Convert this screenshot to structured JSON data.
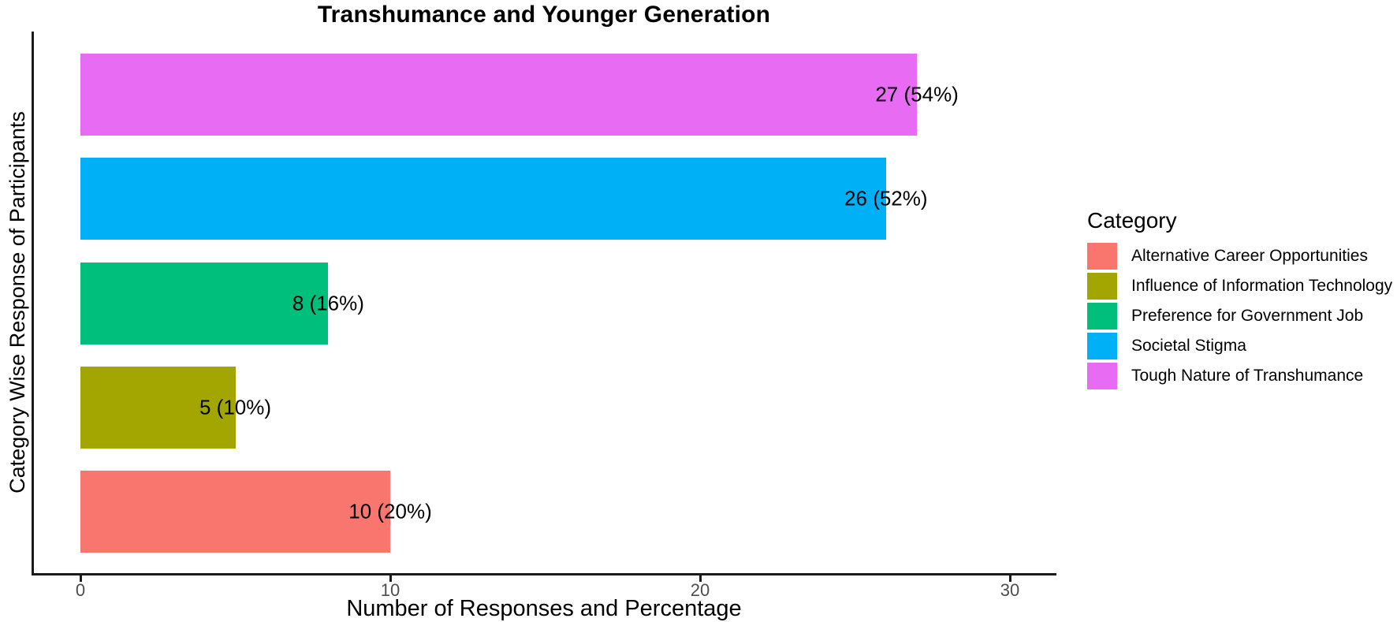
{
  "chart_data": {
    "type": "bar",
    "orientation": "horizontal",
    "title": "Transhumance and Younger Generation",
    "xlabel": "Number of Responses and Percentage",
    "ylabel": "Category Wise Response of Participants",
    "legend_title": "Category",
    "legend_position": "right",
    "grid": false,
    "xlim": [
      0,
      31.5
    ],
    "xticks": [
      0,
      10,
      20,
      30
    ],
    "series_note": "bars listed top to bottom",
    "categories": [
      "Tough Nature of Transhumance",
      "Societal Stigma",
      "Preference for Government Job",
      "Influence of Information Technology",
      "Alternative Career Opportunities"
    ],
    "values": [
      27,
      26,
      8,
      5,
      10
    ],
    "bar_labels": [
      "27 (54%)",
      "26 (52%)",
      "8 (16%)",
      "5 (10%)",
      "10 (20%)"
    ],
    "bar_colors": [
      "#E76BF3",
      "#00B0F6",
      "#00BF7D",
      "#A3A500",
      "#F8766D"
    ],
    "legend": [
      {
        "label": "Alternative Career Opportunities",
        "color": "#F8766D"
      },
      {
        "label": "Influence of Information Technology",
        "color": "#A3A500"
      },
      {
        "label": "Preference for Government Job",
        "color": "#00BF7D"
      },
      {
        "label": "Societal Stigma",
        "color": "#00B0F6"
      },
      {
        "label": "Tough Nature of Transhumance",
        "color": "#E76BF3"
      }
    ],
    "colors": {
      "axis_line": "#1a1a1a",
      "tick_label": "#4d4d4d",
      "text": "#000000",
      "background": "#ffffff"
    }
  }
}
